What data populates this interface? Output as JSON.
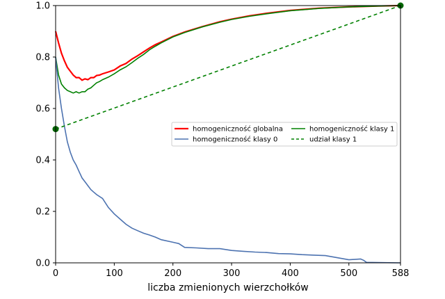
{
  "chart_data": {
    "type": "line",
    "title": "",
    "xlabel": "liczba zmienionych wierzchołków",
    "ylabel": "",
    "xlim": [
      0,
      588
    ],
    "ylim": [
      0,
      1.0
    ],
    "xticks": [
      0,
      100,
      200,
      300,
      400,
      500,
      588
    ],
    "yticks": [
      0.0,
      0.2,
      0.4,
      0.6,
      0.8,
      1.0
    ],
    "xtick_labels": [
      "0",
      "100",
      "200",
      "300",
      "400",
      "500",
      "588"
    ],
    "ytick_labels": [
      "0.0",
      "0.2",
      "0.4",
      "0.6",
      "0.8",
      "1.0"
    ],
    "grid": false,
    "legend_position": "center-right",
    "series": [
      {
        "name": "homogeniczność globalna",
        "color": "#ff0000",
        "style": "solid",
        "x": [
          0,
          5,
          10,
          15,
          20,
          25,
          30,
          35,
          40,
          45,
          50,
          55,
          60,
          65,
          70,
          75,
          80,
          90,
          100,
          110,
          120,
          130,
          140,
          150,
          160,
          170,
          180,
          200,
          220,
          250,
          280,
          300,
          330,
          360,
          400,
          450,
          500,
          550,
          588
        ],
        "y": [
          0.9,
          0.855,
          0.815,
          0.785,
          0.76,
          0.745,
          0.73,
          0.72,
          0.72,
          0.71,
          0.715,
          0.712,
          0.72,
          0.72,
          0.728,
          0.73,
          0.735,
          0.742,
          0.75,
          0.765,
          0.775,
          0.792,
          0.805,
          0.82,
          0.835,
          0.848,
          0.858,
          0.88,
          0.897,
          0.918,
          0.937,
          0.947,
          0.96,
          0.97,
          0.981,
          0.99,
          0.995,
          0.998,
          1.0
        ]
      },
      {
        "name": "homogeniczność klasy 1",
        "color": "#008000",
        "style": "solid",
        "x": [
          0,
          5,
          10,
          15,
          20,
          25,
          30,
          35,
          40,
          45,
          50,
          55,
          60,
          65,
          70,
          75,
          80,
          90,
          100,
          110,
          120,
          130,
          140,
          150,
          160,
          170,
          180,
          200,
          220,
          250,
          280,
          300,
          330,
          360,
          400,
          450,
          500,
          550,
          588
        ],
        "y": [
          0.8,
          0.73,
          0.695,
          0.68,
          0.67,
          0.665,
          0.66,
          0.665,
          0.66,
          0.665,
          0.665,
          0.675,
          0.68,
          0.69,
          0.7,
          0.705,
          0.712,
          0.722,
          0.735,
          0.75,
          0.762,
          0.778,
          0.795,
          0.81,
          0.828,
          0.842,
          0.855,
          0.878,
          0.895,
          0.917,
          0.935,
          0.946,
          0.958,
          0.968,
          0.98,
          0.989,
          0.995,
          0.998,
          1.0
        ]
      },
      {
        "name": "homogeniczność klasy 0",
        "color": "#4c72b0",
        "style": "solid",
        "x": [
          0,
          5,
          10,
          15,
          20,
          25,
          30,
          35,
          40,
          45,
          50,
          55,
          60,
          65,
          70,
          80,
          90,
          100,
          110,
          120,
          130,
          140,
          150,
          160,
          170,
          180,
          200,
          210,
          220,
          240,
          260,
          280,
          300,
          320,
          340,
          360,
          380,
          400,
          420,
          440,
          460,
          480,
          500,
          520,
          525,
          530,
          588
        ],
        "y": [
          0.8,
          0.68,
          0.6,
          0.53,
          0.47,
          0.43,
          0.4,
          0.38,
          0.355,
          0.33,
          0.315,
          0.3,
          0.285,
          0.275,
          0.265,
          0.25,
          0.215,
          0.19,
          0.17,
          0.15,
          0.135,
          0.125,
          0.115,
          0.108,
          0.1,
          0.09,
          0.08,
          0.075,
          0.06,
          0.058,
          0.055,
          0.055,
          0.048,
          0.045,
          0.042,
          0.04,
          0.036,
          0.035,
          0.032,
          0.03,
          0.028,
          0.02,
          0.012,
          0.015,
          0.01,
          0.002,
          0.0
        ]
      },
      {
        "name": "udział klasy 1",
        "color": "#008000",
        "style": "dashed",
        "x": [
          0,
          588
        ],
        "y": [
          0.52,
          1.0
        ]
      }
    ],
    "markers": [
      {
        "x": 0,
        "y": 0.52,
        "color": "#006400"
      },
      {
        "x": 588,
        "y": 1.0,
        "color": "#006400"
      }
    ]
  }
}
